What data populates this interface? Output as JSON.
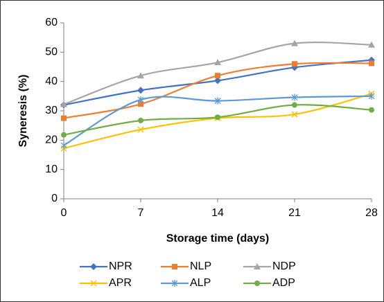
{
  "chart_data": {
    "type": "line",
    "smooth": true,
    "x_label": "Storage time (days)",
    "y_label": "Syneresis (%)",
    "x": [
      0,
      7,
      14,
      21,
      28
    ],
    "xlim": [
      0,
      28
    ],
    "xticks": [
      0,
      7,
      14,
      21,
      28
    ],
    "ylim": [
      0,
      60
    ],
    "yticks": [
      0,
      10,
      20,
      30,
      40,
      50,
      60
    ],
    "grid": false,
    "legend": "bottom",
    "series": [
      {
        "name": "NPR",
        "color": "#4472c4",
        "marker": "diamond",
        "values": [
          32,
          37,
          40.3,
          44.8,
          47.3
        ]
      },
      {
        "name": "NLP",
        "color": "#ed7d31",
        "marker": "square",
        "values": [
          27.5,
          32.3,
          42,
          46,
          46.2
        ]
      },
      {
        "name": "NDP",
        "color": "#a5a5a5",
        "marker": "triangle",
        "values": [
          32.2,
          42,
          46.5,
          53,
          52.5
        ]
      },
      {
        "name": "APR",
        "color": "#ffc000",
        "marker": "x",
        "values": [
          17.2,
          23.6,
          27.5,
          28.8,
          35.8
        ]
      },
      {
        "name": "ALP",
        "color": "#5b9bd5",
        "marker": "asterisk",
        "values": [
          18.2,
          33.8,
          33.4,
          34.6,
          35
        ]
      },
      {
        "name": "ADP",
        "color": "#70ad47",
        "marker": "circle",
        "values": [
          21.8,
          26.7,
          27.8,
          32,
          30.3
        ]
      }
    ]
  }
}
